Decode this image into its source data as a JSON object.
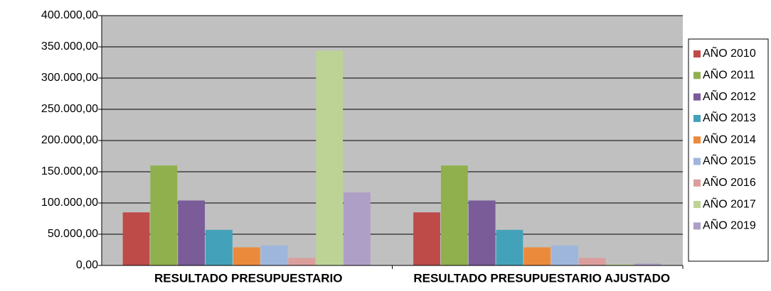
{
  "chart_data": {
    "type": "bar",
    "categories": [
      "RESULTADO PRESUPUESTARIO",
      "RESULTADO PRESUPUESTARIO AJUSTADO"
    ],
    "series": [
      {
        "name": "AÑO 2010",
        "color": "#be4b48",
        "values": [
          85000,
          85000
        ]
      },
      {
        "name": "AÑO 2011",
        "color": "#8fb04c",
        "values": [
          160000,
          160000
        ]
      },
      {
        "name": "AÑO 2012",
        "color": "#7a5c99",
        "values": [
          104000,
          104000
        ]
      },
      {
        "name": "AÑO 2013",
        "color": "#43a2ba",
        "values": [
          57000,
          57000
        ]
      },
      {
        "name": "AÑO 2014",
        "color": "#ec8a3c",
        "values": [
          29000,
          29000
        ]
      },
      {
        "name": "AÑO 2015",
        "color": "#9fb6dc",
        "values": [
          32000,
          32000
        ]
      },
      {
        "name": "AÑO 2016",
        "color": "#dc9e9d",
        "values": [
          12000,
          12000
        ]
      },
      {
        "name": "AÑO 2017",
        "color": "#bdd396",
        "values": [
          344000,
          2000
        ]
      },
      {
        "name": "AÑO 2019",
        "color": "#ae9fc6",
        "values": [
          117000,
          3000
        ]
      }
    ],
    "ylim": [
      0,
      400000
    ],
    "yticks": [
      {
        "value": 0,
        "label": "0,00"
      },
      {
        "value": 50000,
        "label": "50.000,00"
      },
      {
        "value": 100000,
        "label": "100.000,00"
      },
      {
        "value": 150000,
        "label": "150.000,00"
      },
      {
        "value": 200000,
        "label": "200.000,00"
      },
      {
        "value": 250000,
        "label": "250.000,00"
      },
      {
        "value": 300000,
        "label": "300.000,00"
      },
      {
        "value": 350000,
        "label": "350.000,00"
      },
      {
        "value": 400000,
        "label": "400.000,00"
      }
    ],
    "grid": true,
    "legend": "right"
  }
}
